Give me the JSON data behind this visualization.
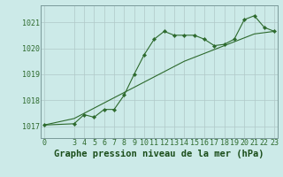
{
  "hours": [
    0,
    3,
    4,
    5,
    6,
    7,
    8,
    9,
    10,
    11,
    12,
    13,
    14,
    15,
    16,
    17,
    18,
    19,
    20,
    21,
    22,
    23
  ],
  "pressure": [
    1017.05,
    1017.1,
    1017.45,
    1017.35,
    1017.65,
    1017.65,
    1018.2,
    1019.0,
    1019.75,
    1020.35,
    1020.65,
    1020.5,
    1020.5,
    1020.5,
    1020.35,
    1020.1,
    1020.15,
    1020.35,
    1021.1,
    1021.25,
    1020.8,
    1020.65
  ],
  "hours2": [
    0,
    3,
    4,
    5,
    6,
    7,
    8,
    9,
    10,
    11,
    12,
    13,
    14,
    15,
    16,
    17,
    18,
    19,
    20,
    21,
    22,
    23
  ],
  "pressure2": [
    1017.05,
    1017.3,
    1017.5,
    1017.7,
    1017.9,
    1018.1,
    1018.3,
    1018.5,
    1018.7,
    1018.9,
    1019.1,
    1019.3,
    1019.5,
    1019.65,
    1019.8,
    1019.95,
    1020.1,
    1020.25,
    1020.4,
    1020.55,
    1020.6,
    1020.65
  ],
  "line_color": "#2d6a2d",
  "marker_color": "#2d6a2d",
  "bg_color": "#cceae8",
  "grid_color": "#b0c8c8",
  "title": "Graphe pression niveau de la mer (hPa)",
  "title_color": "#1a4d1a",
  "yticks": [
    1017,
    1018,
    1019,
    1020,
    1021
  ],
  "xticks": [
    0,
    3,
    4,
    5,
    6,
    7,
    8,
    9,
    10,
    11,
    12,
    13,
    14,
    15,
    16,
    17,
    18,
    19,
    20,
    21,
    22,
    23
  ],
  "ylim": [
    1016.55,
    1021.65
  ],
  "xlim": [
    -0.3,
    23.3
  ],
  "tick_color": "#2d6a2d",
  "tick_fontsize": 6.0,
  "title_fontsize": 7.5
}
